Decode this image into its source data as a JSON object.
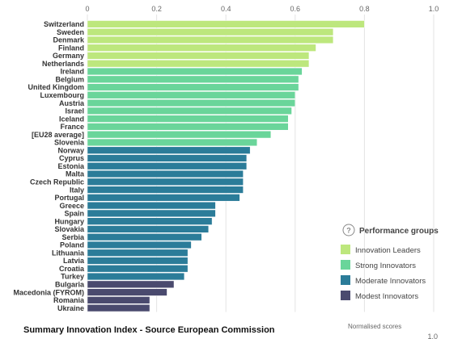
{
  "chart_data": {
    "type": "bar",
    "orientation": "horizontal",
    "xlabel": "Normalised scores",
    "xlim": [
      0,
      1.0
    ],
    "xticks": [
      "0",
      "0.2",
      "0.4",
      "0.6",
      "0.8",
      "1.0"
    ],
    "xticks_bottom_visible": [
      "1.0"
    ],
    "grid": true,
    "legend_placement": "bottom-right",
    "legend": {
      "title": "Performance groups",
      "entries": [
        {
          "name": "Innovation Leaders",
          "color": "#bde77d"
        },
        {
          "name": "Strong Innovators",
          "color": "#6ad59a"
        },
        {
          "name": "Moderate Innovators",
          "color": "#2b7c99"
        },
        {
          "name": "Modest Innovators",
          "color": "#4a4a6e"
        }
      ]
    },
    "categories": [
      "Switzerland",
      "Sweden",
      "Denmark",
      "Finland",
      "Germany",
      "Netherlands",
      "Ireland",
      "Belgium",
      "United Kingdom",
      "Luxembourg",
      "Austria",
      "Israel",
      "Iceland",
      "France",
      "[EU28 average]",
      "Slovenia",
      "Norway",
      "Cyprus",
      "Estonia",
      "Malta",
      "Czech Republic",
      "Italy",
      "Portugal",
      "Greece",
      "Spain",
      "Hungary",
      "Slovakia",
      "Serbia",
      "Poland",
      "Lithuania",
      "Latvia",
      "Croatia",
      "Turkey",
      "Bulgaria",
      "Macedonia (FYROM)",
      "Romania",
      "Ukraine"
    ],
    "values": [
      0.8,
      0.71,
      0.71,
      0.66,
      0.64,
      0.64,
      0.62,
      0.61,
      0.61,
      0.6,
      0.6,
      0.59,
      0.58,
      0.58,
      0.53,
      0.49,
      0.47,
      0.46,
      0.46,
      0.45,
      0.45,
      0.45,
      0.44,
      0.37,
      0.37,
      0.36,
      0.35,
      0.33,
      0.3,
      0.29,
      0.29,
      0.29,
      0.28,
      0.25,
      0.23,
      0.18,
      0.18
    ],
    "groups": [
      "Innovation Leaders",
      "Innovation Leaders",
      "Innovation Leaders",
      "Innovation Leaders",
      "Innovation Leaders",
      "Innovation Leaders",
      "Strong Innovators",
      "Strong Innovators",
      "Strong Innovators",
      "Strong Innovators",
      "Strong Innovators",
      "Strong Innovators",
      "Strong Innovators",
      "Strong Innovators",
      "Strong Innovators",
      "Strong Innovators",
      "Moderate Innovators",
      "Moderate Innovators",
      "Moderate Innovators",
      "Moderate Innovators",
      "Moderate Innovators",
      "Moderate Innovators",
      "Moderate Innovators",
      "Moderate Innovators",
      "Moderate Innovators",
      "Moderate Innovators",
      "Moderate Innovators",
      "Moderate Innovators",
      "Moderate Innovators",
      "Moderate Innovators",
      "Moderate Innovators",
      "Moderate Innovators",
      "Moderate Innovators",
      "Modest Innovators",
      "Modest Innovators",
      "Modest Innovators",
      "Modest Innovators"
    ]
  },
  "caption": "Summary Innovation Index - Source European Commission",
  "help_icon": "question-circle-icon",
  "colors": {
    "grid": "#e3e3e3",
    "bar_edge": "#ffffff"
  }
}
